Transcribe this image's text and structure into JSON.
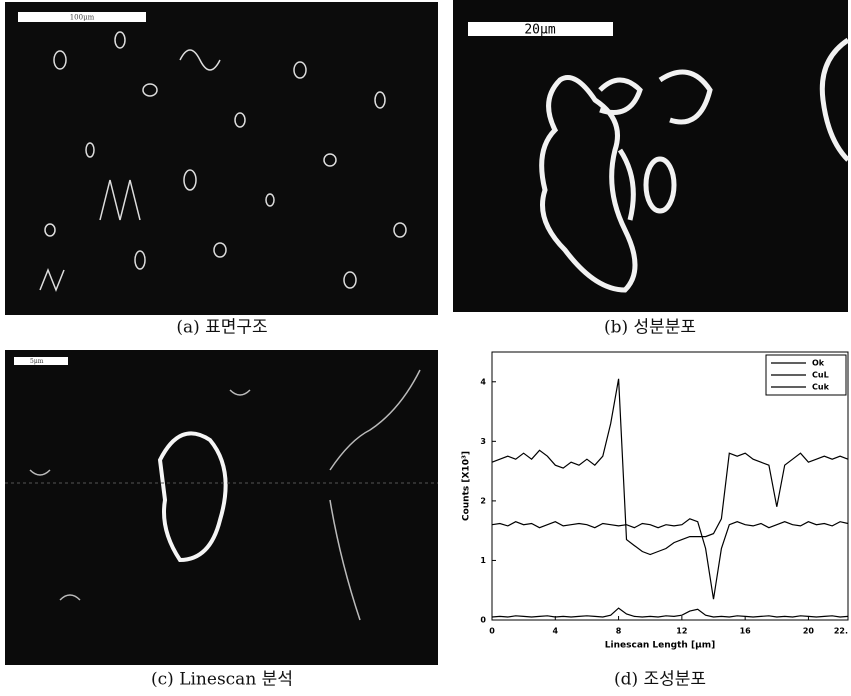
{
  "panels": [
    {
      "caption": "(a) 표면구조",
      "scale_label": "100μm"
    },
    {
      "caption": "(b) 성분분포",
      "scale_label": "20μm"
    },
    {
      "caption": "(c) Linescan  분석",
      "scale_label": "5μm"
    },
    {
      "caption": "(d) 조성분포"
    }
  ],
  "chart_data": {
    "type": "line",
    "ylabel": "Counts [X10³]",
    "xlabel": "Linescan Length [μm]",
    "xlim": [
      0,
      22.5
    ],
    "ylim": [
      0,
      4.5
    ],
    "xticks": [
      0,
      4,
      8,
      12,
      16,
      20,
      {
        "value": 22.5,
        "label": "22."
      }
    ],
    "yticks": [
      0,
      1,
      2,
      3,
      4
    ],
    "legend": "upper-right",
    "x": [
      0,
      0.5,
      1,
      1.5,
      2,
      2.5,
      3,
      3.5,
      4,
      4.5,
      5,
      5.5,
      6,
      6.5,
      7,
      7.5,
      8,
      8.5,
      9,
      9.5,
      10,
      10.5,
      11,
      11.5,
      12,
      12.5,
      13,
      13.5,
      14,
      14.5,
      15,
      15.5,
      16,
      16.5,
      17,
      17.5,
      18,
      18.5,
      19,
      19.5,
      20,
      20.5,
      21,
      21.5,
      22,
      22.5
    ],
    "series": [
      {
        "name": "Ok",
        "color": "#000000",
        "values": [
          0.05,
          0.06,
          0.05,
          0.07,
          0.06,
          0.05,
          0.06,
          0.07,
          0.05,
          0.06,
          0.05,
          0.06,
          0.07,
          0.06,
          0.05,
          0.08,
          0.2,
          0.1,
          0.06,
          0.05,
          0.06,
          0.05,
          0.07,
          0.06,
          0.08,
          0.15,
          0.18,
          0.08,
          0.05,
          0.06,
          0.05,
          0.07,
          0.06,
          0.05,
          0.06,
          0.07,
          0.05,
          0.06,
          0.05,
          0.07,
          0.06,
          0.05,
          0.06,
          0.07,
          0.05,
          0.06
        ]
      },
      {
        "name": "CuL",
        "color": "#000000",
        "values": [
          2.65,
          2.7,
          2.75,
          2.7,
          2.8,
          2.7,
          2.85,
          2.75,
          2.6,
          2.55,
          2.65,
          2.6,
          2.7,
          2.6,
          2.75,
          3.3,
          4.05,
          1.35,
          1.25,
          1.15,
          1.1,
          1.15,
          1.2,
          1.3,
          1.35,
          1.4,
          1.4,
          1.4,
          1.45,
          1.7,
          2.8,
          2.75,
          2.8,
          2.7,
          2.65,
          2.6,
          1.9,
          2.6,
          2.7,
          2.8,
          2.65,
          2.7,
          2.75,
          2.7,
          2.75,
          2.7
        ]
      },
      {
        "name": "Cuk",
        "color": "#000000",
        "values": [
          1.6,
          1.62,
          1.58,
          1.65,
          1.6,
          1.62,
          1.55,
          1.6,
          1.65,
          1.58,
          1.6,
          1.62,
          1.6,
          1.55,
          1.62,
          1.6,
          1.58,
          1.6,
          1.55,
          1.62,
          1.6,
          1.55,
          1.6,
          1.58,
          1.6,
          1.7,
          1.65,
          1.2,
          0.35,
          1.2,
          1.6,
          1.65,
          1.6,
          1.58,
          1.62,
          1.55,
          1.6,
          1.65,
          1.6,
          1.58,
          1.65,
          1.6,
          1.62,
          1.58,
          1.65,
          1.62
        ]
      }
    ]
  }
}
